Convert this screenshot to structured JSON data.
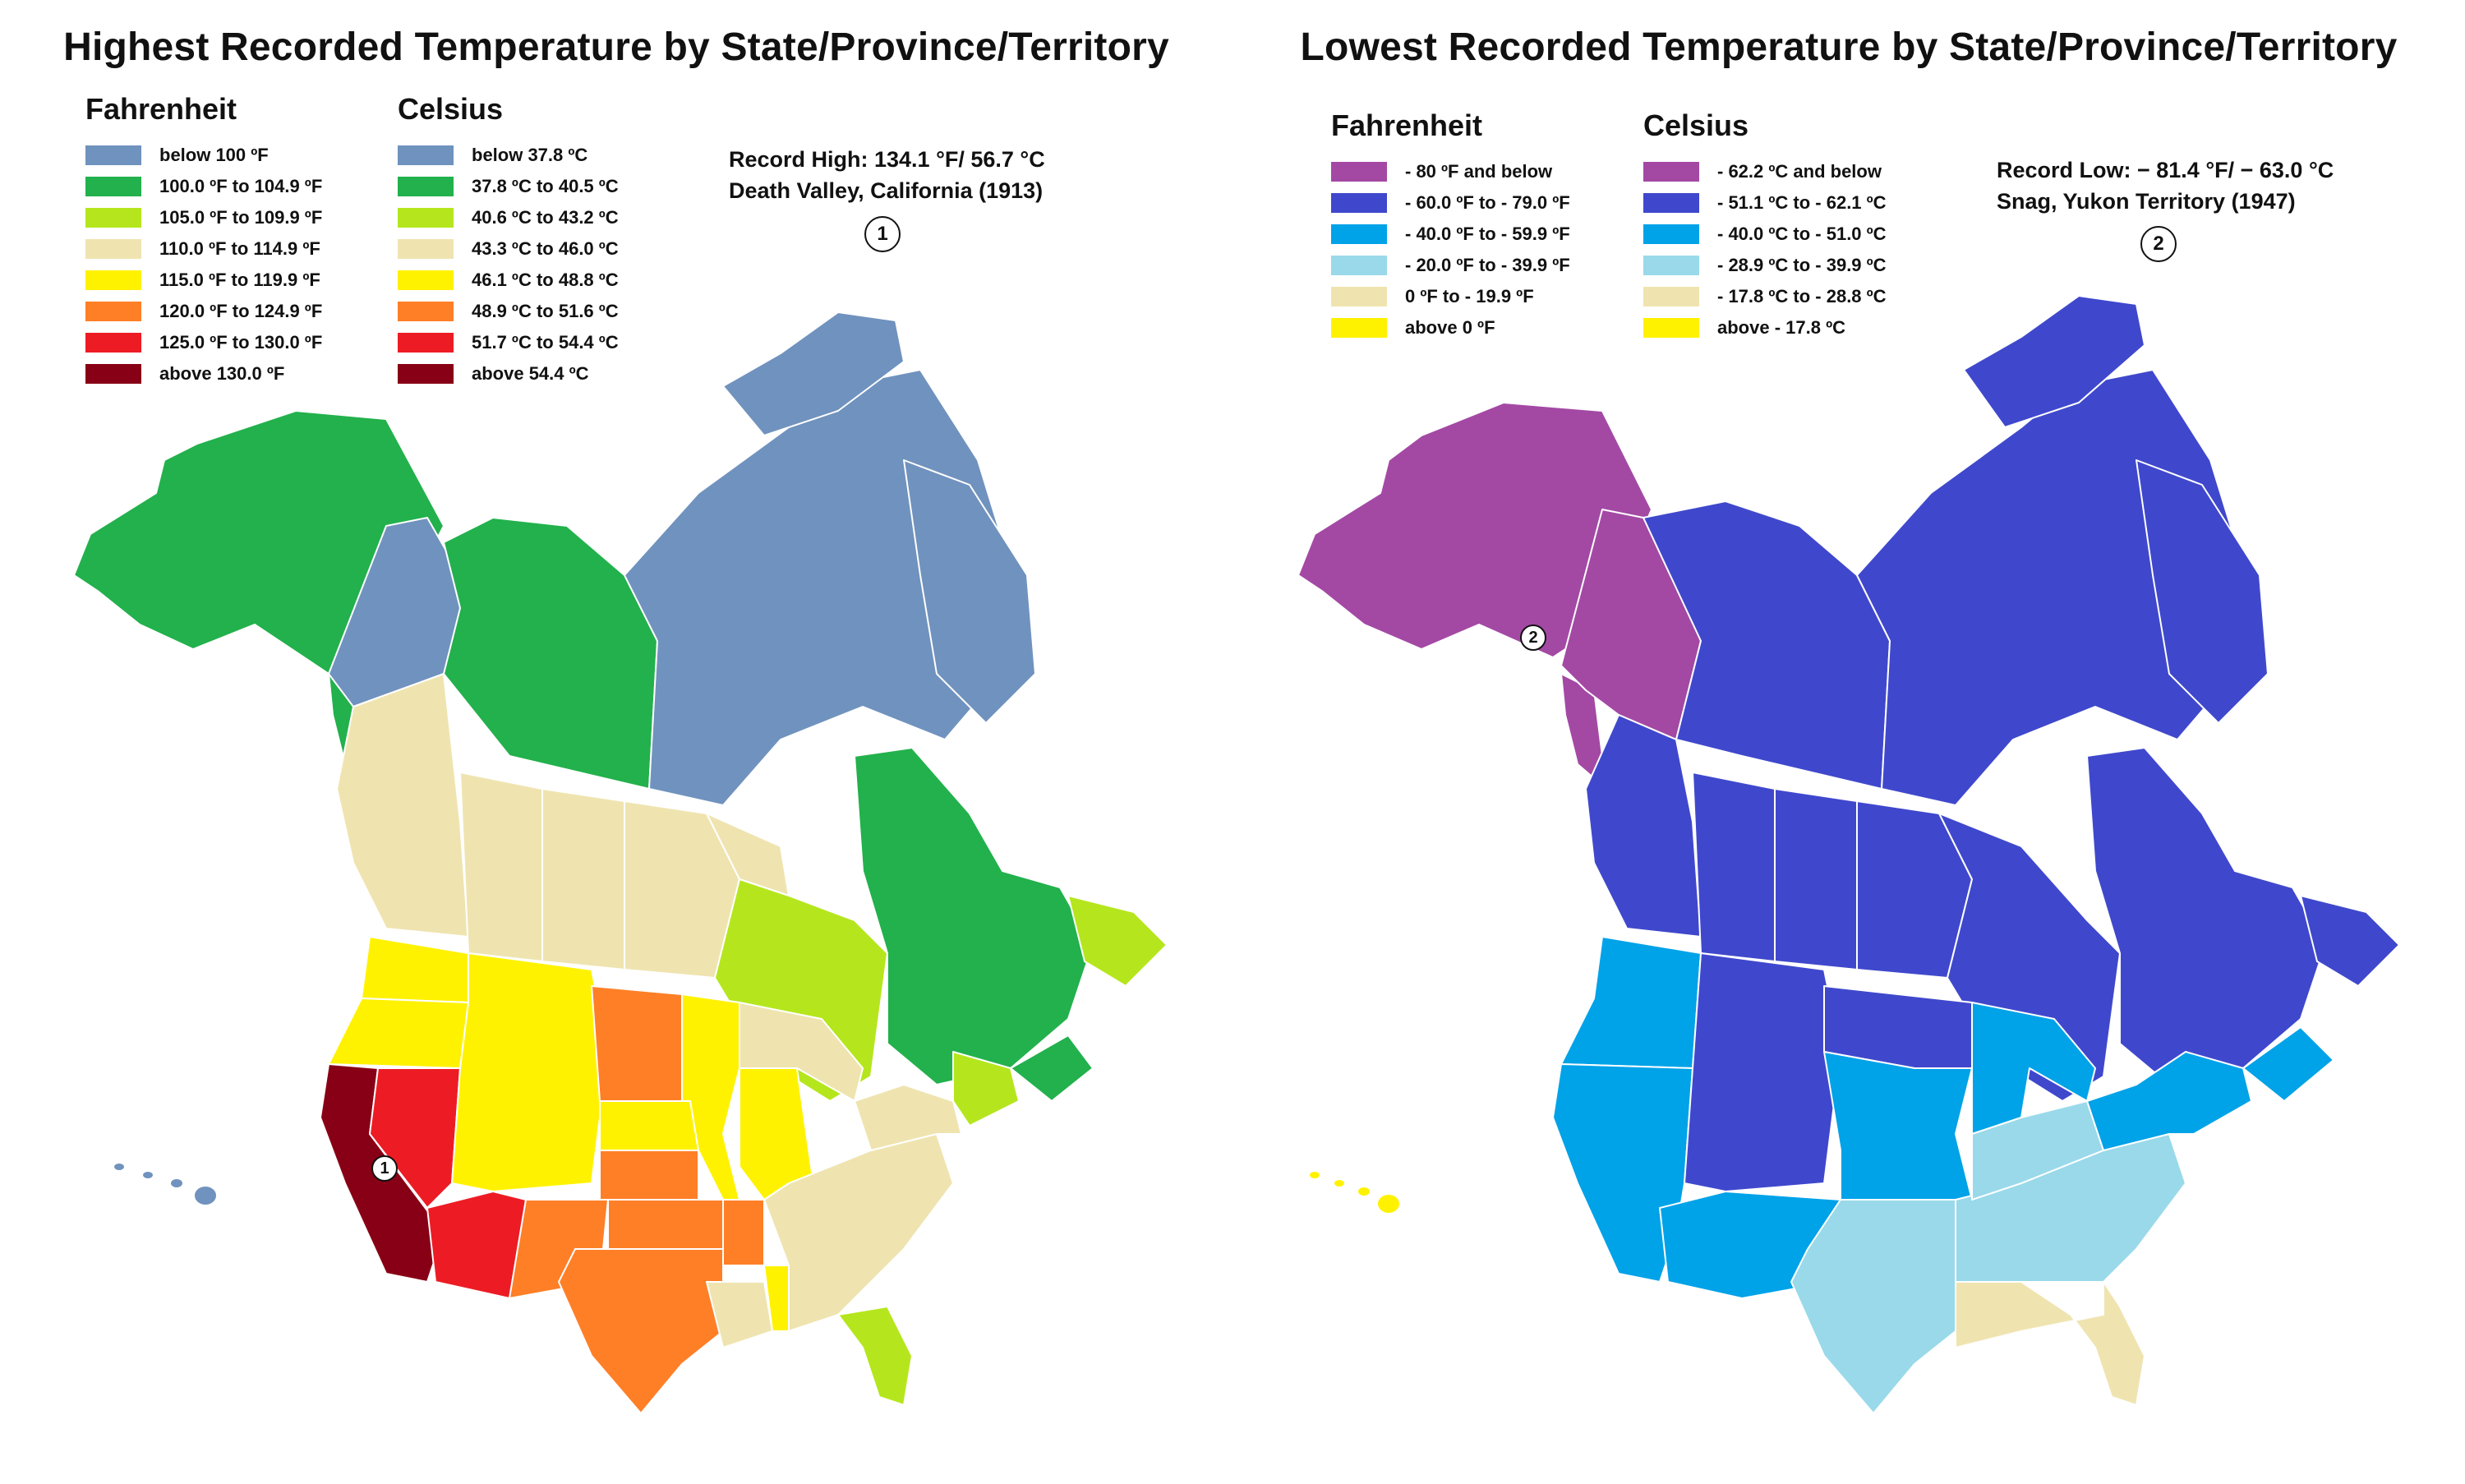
{
  "left": {
    "title": "Highest Recorded Temperature by State/Province/Territory",
    "fahrenheit_heading": "Fahrenheit",
    "celsius_heading": "Celsius",
    "record_line1": "Record High: 134.1 °F/ 56.7 °C",
    "record_line2": "Death Valley, California (1913)",
    "marker": "1",
    "legend": [
      {
        "color": "#7092BE",
        "f": "below 100 ºF",
        "c": "below 37.8 ºC"
      },
      {
        "color": "#22B14C",
        "f": "100.0 ºF to 104.9 ºF",
        "c": "37.8 ºC to 40.5 ºC"
      },
      {
        "color": "#B5E61D",
        "f": "105.0 ºF to 109.9 ºF",
        "c": "40.6 ºC to 43.2 ºC"
      },
      {
        "color": "#EFE4B0",
        "f": "110.0 ºF to 114.9 ºF",
        "c": "43.3 ºC to 46.0 ºC"
      },
      {
        "color": "#FFF200",
        "f": "115.0 ºF to 119.9 ºF",
        "c": "46.1 ºC to 48.8 ºC"
      },
      {
        "color": "#FF7F27",
        "f": "120.0 ºF to 124.9 ºF",
        "c": "48.9 ºC to 51.6 ºC"
      },
      {
        "color": "#ED1C24",
        "f": "125.0 ºF to 130.0 ºF",
        "c": "51.7 ºC to 54.4 ºC"
      },
      {
        "color": "#880015",
        "f": "above 130.0  ºF",
        "c": "above 54.4 ºC"
      }
    ]
  },
  "right": {
    "title": "Lowest Recorded Temperature by State/Province/Territory",
    "fahrenheit_heading": "Fahrenheit",
    "celsius_heading": "Celsius",
    "record_line1": "Record Low: − 81.4 °F/ − 63.0 °C",
    "record_line2": "Snag, Yukon Territory (1947)",
    "marker": "2",
    "legend": [
      {
        "color": "#A349A4",
        "f": "- 80 ºF and below",
        "c": "- 62.2 ºC and below"
      },
      {
        "color": "#3F48CC",
        "f": "- 60.0 ºF to - 79.0 ºF",
        "c": "- 51.1 ºC to - 62.1 ºC"
      },
      {
        "color": "#00A2E8",
        "f": "- 40.0 ºF to - 59.9 ºF",
        "c": "- 40.0 ºC to - 51.0 ºC"
      },
      {
        "color": "#99D9EA",
        "f": "- 20.0 ºF to - 39.9 ºF",
        "c": "- 28.9 ºC to - 39.9 ºC"
      },
      {
        "color": "#EFE4B0",
        "f": "0 ºF to - 19.9 ºF",
        "c": "- 17.8 ºC to - 28.8 ºC"
      },
      {
        "color": "#FFF200",
        "f": "above 0 ºF",
        "c": "above - 17.8 ºC"
      }
    ]
  },
  "colors": {
    "high": {
      "below100": "#7092BE",
      "c100": "#22B14C",
      "c105": "#B5E61D",
      "c110": "#EFE4B0",
      "c115": "#FFF200",
      "c120": "#FF7F27",
      "c125": "#ED1C24",
      "c130": "#880015"
    },
    "low": {
      "m80": "#A349A4",
      "m60": "#3F48CC",
      "m40": "#00A2E8",
      "m20": "#99D9EA",
      "m0": "#EFE4B0",
      "above0": "#FFF200"
    }
  }
}
